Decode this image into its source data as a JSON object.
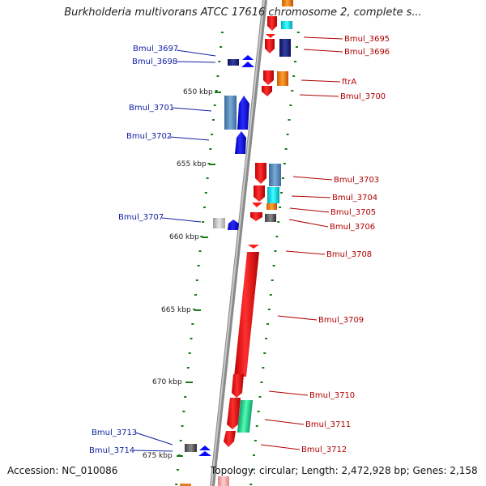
{
  "title": "Burkholderia multivorans ATCC 17616 chromosome 2, complete s...",
  "footer": {
    "accession": "Accession: NC_010086",
    "summary": "Topology: circular; Length: 2,472,928 bp; Genes: 2,158"
  },
  "colors": {
    "backbone": "#8a8a8a",
    "tick": "#1a7a1a",
    "forward_label": "#1020a0",
    "reverse_label": "#b00000",
    "forward_gene": "#0a0aff",
    "reverse_gene": "#ff1a1a"
  },
  "scale_labels": [
    "650 kbp",
    "655 kbp",
    "660 kbp",
    "665 kbp",
    "670 kbp",
    "675 kbp"
  ],
  "left_labels": [
    "Bmul_3697",
    "Bmul_3698",
    "Bmul_3701",
    "Bmul_3702",
    "Bmul_3707",
    "Bmul_3713",
    "Bmul_3714"
  ],
  "right_labels": [
    "Bmul_3695",
    "Bmul_3696",
    "ftrA",
    "Bmul_3700",
    "Bmul_3703",
    "Bmul_3704",
    "Bmul_3705",
    "Bmul_3706",
    "Bmul_3708",
    "Bmul_3709",
    "Bmul_3710",
    "Bmul_3711",
    "Bmul_3712"
  ]
}
